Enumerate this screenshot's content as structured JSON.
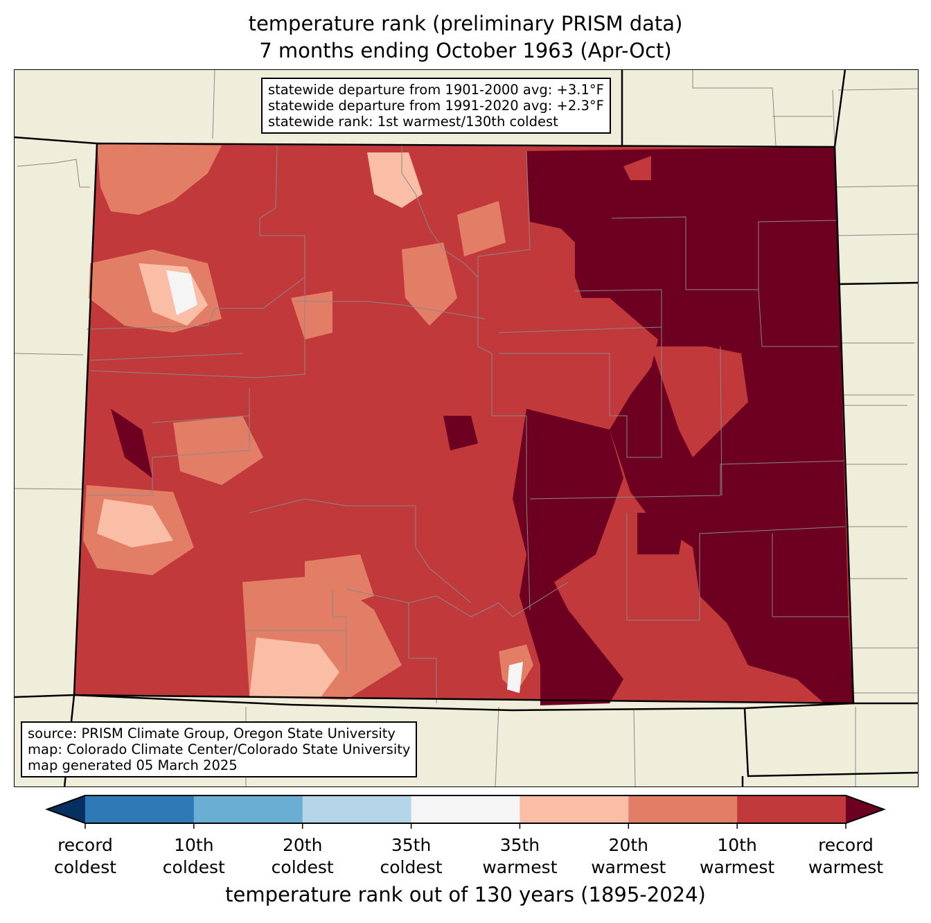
{
  "title": {
    "line1": "temperature rank (preliminary PRISM data)",
    "line2": "7 months ending October 1963 (Apr-Oct)"
  },
  "stats_box": {
    "line1": "statewide departure from 1901-2000 avg: +3.1°F",
    "line2": "statewide departure from 1991-2020 avg: +2.3°F",
    "line3": "statewide rank: 1st warmest/130th coldest"
  },
  "source_box": {
    "line1": "source: PRISM Climate Group, Oregon State University",
    "line2": "map: Colorado Climate Center/Colorado State University",
    "line3": "map generated 05 March 2025"
  },
  "colorbar": {
    "label": "temperature rank out of 130 years (1895-2024)",
    "colors": [
      "#053061",
      "#2f7ab6",
      "#6aaed3",
      "#b3d5e7",
      "#f5f5f5",
      "#f9bea5",
      "#e37e66",
      "#c2393b",
      "#6d0020"
    ],
    "ticks": [
      {
        "l1": "record",
        "l2": "coldest"
      },
      {
        "l1": "10th",
        "l2": "coldest"
      },
      {
        "l1": "20th",
        "l2": "coldest"
      },
      {
        "l1": "35th",
        "l2": "coldest"
      },
      {
        "l1": "35th",
        "l2": "warmest"
      },
      {
        "l1": "20th",
        "l2": "warmest"
      },
      {
        "l1": "10th",
        "l2": "warmest"
      },
      {
        "l1": "record",
        "l2": "warmest"
      }
    ]
  },
  "colors": {
    "land": "#efeedb",
    "record_warmest": "#6d0020",
    "tenth_warmest": "#c2393b",
    "twentieth_warmest": "#e37e66",
    "thirtyfifth_warmest": "#f9bea5",
    "near_normal": "#f5f5f5"
  }
}
